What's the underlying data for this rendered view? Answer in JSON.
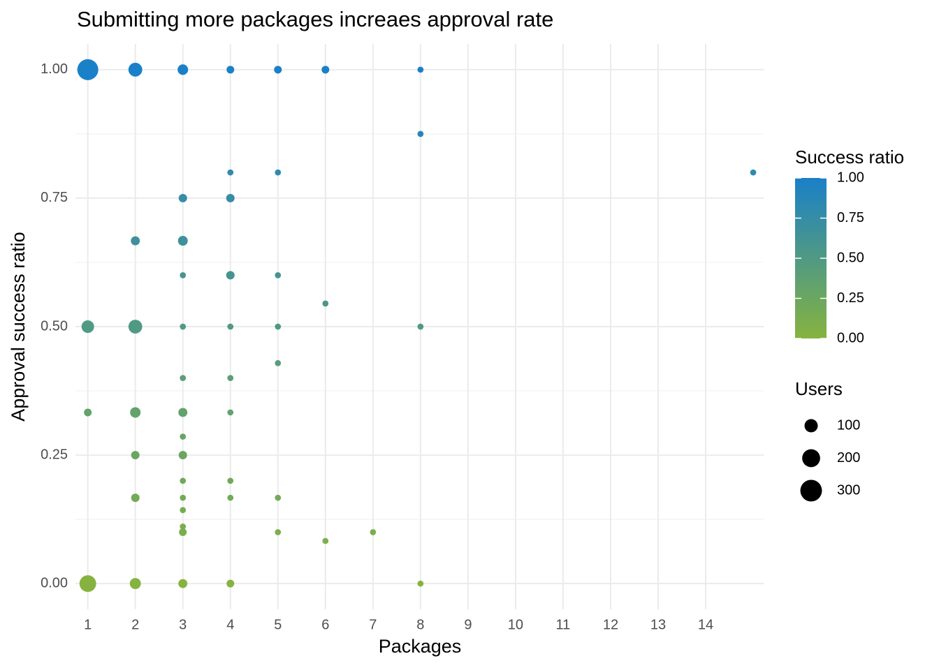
{
  "chart_data": {
    "type": "scatter",
    "title": "Submitting more packages increaes approval rate",
    "x_label": "Packages",
    "y_label": "Approval success ratio",
    "x": [
      1,
      2,
      3,
      4,
      5,
      6,
      8,
      8,
      15,
      4,
      5,
      3,
      4,
      2,
      3,
      3,
      4,
      5,
      6,
      1,
      2,
      3,
      4,
      5,
      8,
      5,
      3,
      4,
      1,
      2,
      3,
      4,
      3,
      2,
      3,
      3,
      4,
      2,
      3,
      4,
      5,
      3,
      3,
      3,
      5,
      6,
      7,
      1,
      2,
      3,
      4,
      8
    ],
    "y": [
      1,
      1,
      1,
      1,
      1,
      1,
      1,
      0.875,
      0.8,
      0.8,
      0.8,
      0.75,
      0.75,
      0.667,
      0.667,
      0.6,
      0.6,
      0.6,
      0.545,
      0.5,
      0.5,
      0.5,
      0.5,
      0.5,
      0.5,
      0.429,
      0.4,
      0.4,
      0.333,
      0.333,
      0.333,
      0.333,
      0.286,
      0.25,
      0.25,
      0.2,
      0.2,
      0.167,
      0.167,
      0.167,
      0.167,
      0.143,
      0.111,
      0.1,
      0.1,
      0.083,
      0.1,
      0,
      0,
      0,
      0,
      0
    ],
    "sizes": [
      280,
      110,
      55,
      20,
      20,
      20,
      5,
      5,
      5,
      5,
      5,
      28,
      28,
      35,
      45,
      5,
      28,
      5,
      5,
      88,
      110,
      5,
      5,
      5,
      5,
      5,
      5,
      5,
      20,
      55,
      35,
      5,
      5,
      28,
      28,
      5,
      5,
      28,
      5,
      5,
      5,
      5,
      5,
      20,
      5,
      5,
      5,
      170,
      64,
      35,
      20,
      5
    ],
    "xlim": [
      0.74,
      15.22
    ],
    "ylim": [
      -0.05,
      1.05
    ],
    "xticks": [
      1,
      2,
      3,
      4,
      5,
      6,
      7,
      8,
      9,
      10,
      11,
      12,
      13,
      14
    ],
    "yticks": [
      {
        "value": 0,
        "label": "0.00"
      },
      {
        "value": 0.25,
        "label": "0.25"
      },
      {
        "value": 0.5,
        "label": "0.50"
      },
      {
        "value": 0.75,
        "label": "0.75"
      },
      {
        "value": 1,
        "label": "1.00"
      }
    ],
    "grid": true,
    "color_legend": {
      "title": "Success ratio",
      "low_color": "#86b33f",
      "high_color": "#1a80c8",
      "ticks": [
        {
          "value": 0,
          "label": "0.00"
        },
        {
          "value": 0.25,
          "label": "0.25"
        },
        {
          "value": 0.5,
          "label": "0.50"
        },
        {
          "value": 0.75,
          "label": "0.75"
        },
        {
          "value": 1,
          "label": "1.00"
        }
      ]
    },
    "size_legend": {
      "title": "Users",
      "values": [
        100,
        200,
        300
      ],
      "color": "#000000"
    }
  }
}
